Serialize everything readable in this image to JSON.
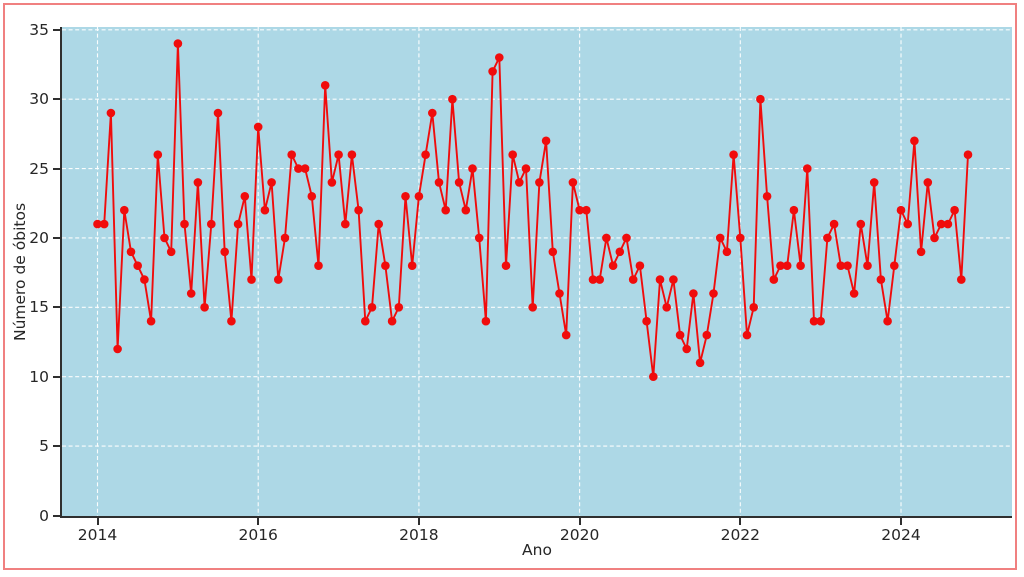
{
  "figure": {
    "background_color": "#ffffff",
    "border_color": "#f08080",
    "plot_background_color": "#add8e6",
    "grid_color": "#ffffff",
    "spine_color": "#2f2f2f",
    "tick_label_color": "#262626",
    "line_color": "#f00c0c",
    "marker_color": "#f00c0c"
  },
  "axes": {
    "x_label": "Ano",
    "y_label": "Número de óbitos",
    "x_ticks": [
      2014,
      2016,
      2018,
      2020,
      2022,
      2024
    ],
    "y_ticks": [
      0,
      5,
      10,
      15,
      20,
      25,
      30,
      35
    ]
  },
  "chart_data": {
    "type": "line",
    "title": "",
    "xlabel": "Ano",
    "ylabel": "Número de óbitos",
    "legend": false,
    "grid": true,
    "marker": "circle",
    "frequency": "monthly",
    "start": "2014-01",
    "end": "2024-11",
    "xlim": [
      2013.56,
      2025.38
    ],
    "ylim": [
      0,
      35.2
    ],
    "years": [
      2014,
      2015,
      2016,
      2017,
      2018,
      2019,
      2020,
      2021,
      2022,
      2023,
      2024
    ],
    "values_by_year": {
      "2014": [
        21,
        21,
        29,
        12,
        22,
        19,
        18,
        17,
        14,
        26,
        20,
        19
      ],
      "2015": [
        34,
        21,
        16,
        24,
        15,
        21,
        29,
        19,
        14,
        21,
        23,
        17
      ],
      "2016": [
        28,
        22,
        24,
        17,
        20,
        26,
        25,
        25,
        23,
        18,
        31,
        24
      ],
      "2017": [
        26,
        21,
        26,
        22,
        14,
        15,
        21,
        18,
        14,
        15,
        23,
        18
      ],
      "2018": [
        23,
        26,
        29,
        24,
        22,
        30,
        24,
        22,
        25,
        20,
        14,
        32
      ],
      "2019": [
        33,
        18,
        26,
        24,
        25,
        15,
        24,
        27,
        19,
        16,
        13,
        24
      ],
      "2020": [
        22,
        22,
        17,
        17,
        20,
        18,
        19,
        20,
        17,
        18,
        14,
        10
      ],
      "2021": [
        17,
        15,
        17,
        13,
        12,
        16,
        11,
        13,
        16,
        20,
        19,
        26
      ],
      "2022": [
        20,
        13,
        15,
        30,
        23,
        17,
        18,
        18,
        22,
        18,
        25,
        14
      ],
      "2023": [
        14,
        20,
        21,
        18,
        18,
        16,
        21,
        18,
        24,
        17,
        14,
        18
      ],
      "2024": [
        22,
        21,
        27,
        19,
        24,
        20,
        21,
        21,
        22,
        17,
        26
      ]
    }
  }
}
